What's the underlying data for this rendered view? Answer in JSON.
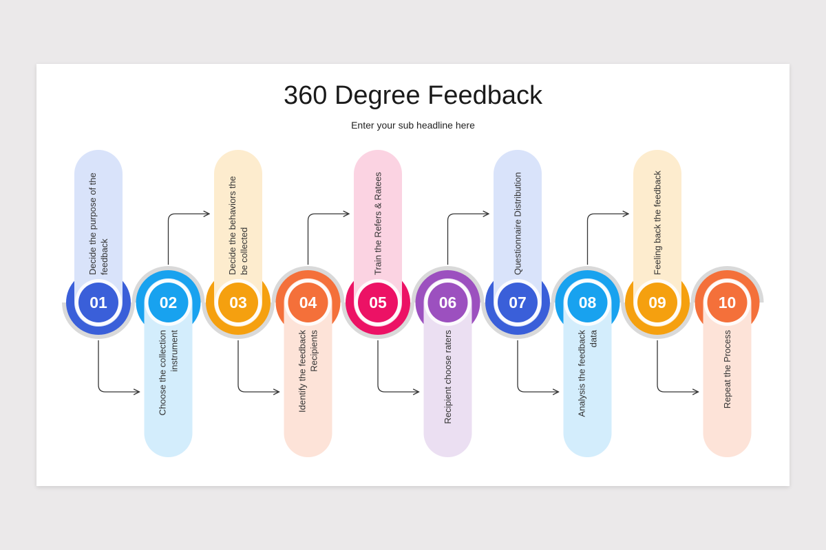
{
  "slide": {
    "title": "360 Degree Feedback",
    "subtitle": "Enter your sub headline here"
  },
  "steps": [
    {
      "number": "01",
      "lines": [
        "Decide the purpose of the",
        "feedback"
      ],
      "color": "#3a5fd9",
      "pill_color": "#d9e3fa"
    },
    {
      "number": "02",
      "lines": [
        "Choose the collection",
        "instrument"
      ],
      "color": "#18a2ef",
      "pill_color": "#d3edfc"
    },
    {
      "number": "03",
      "lines": [
        "Decide the behaviors the",
        "be collected"
      ],
      "color": "#f5a00f",
      "pill_color": "#fdecce"
    },
    {
      "number": "04",
      "lines": [
        "Identify the feedback",
        "Recipients"
      ],
      "color": "#f4703a",
      "pill_color": "#fde3d8"
    },
    {
      "number": "05",
      "lines": [
        "Train the Refers & Ratees"
      ],
      "color": "#ec1265",
      "pill_color": "#fbd3e2"
    },
    {
      "number": "06",
      "lines": [
        "Recipient choose raters"
      ],
      "color": "#9c50bf",
      "pill_color": "#ebdff2"
    },
    {
      "number": "07",
      "lines": [
        "Questionnaire Distribution"
      ],
      "color": "#3a5fd9",
      "pill_color": "#d9e3fa"
    },
    {
      "number": "08",
      "lines": [
        "Analysis the feedback",
        "data"
      ],
      "color": "#18a2ef",
      "pill_color": "#d3edfc"
    },
    {
      "number": "09",
      "lines": [
        "Feeling back the feedback"
      ],
      "color": "#f5a00f",
      "pill_color": "#fdecce"
    },
    {
      "number": "10",
      "lines": [
        "Repeat the Process"
      ],
      "color": "#f4703a",
      "pill_color": "#fde3d8"
    }
  ],
  "ring_color": "#d9d9d9",
  "arrow_color": "#333333"
}
